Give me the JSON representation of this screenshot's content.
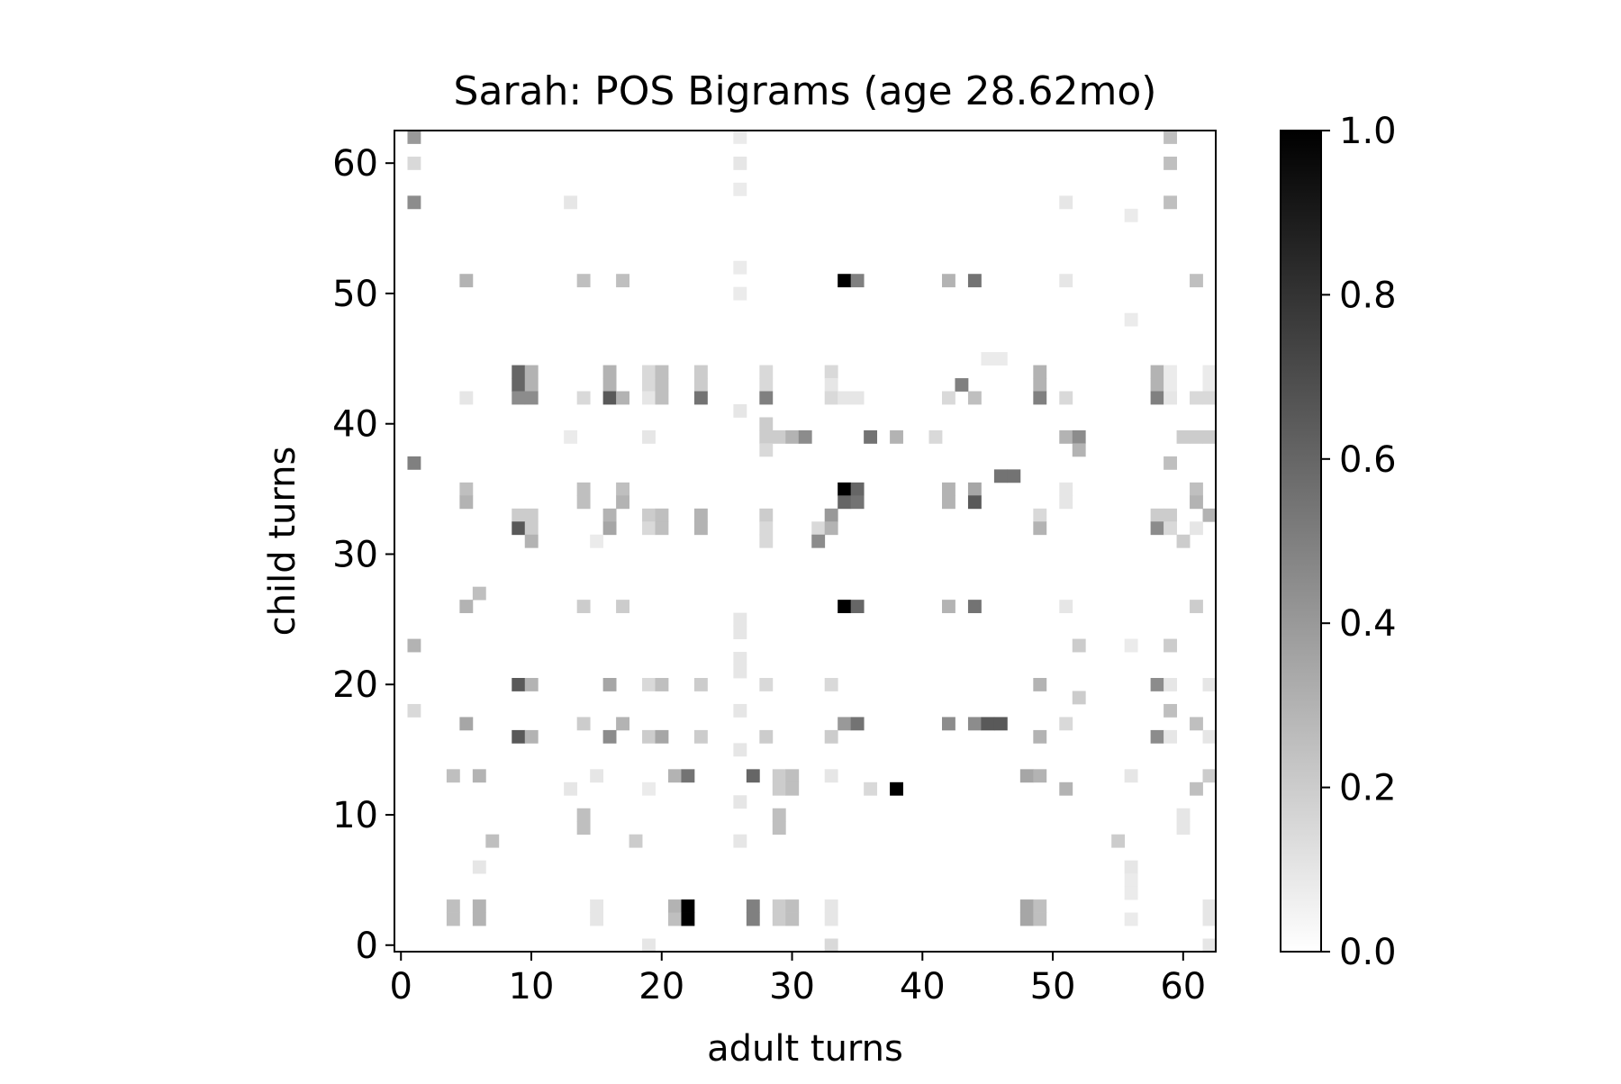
{
  "chart_data": {
    "type": "heatmap",
    "title": "Sarah: POS Bigrams (age 28.62mo)",
    "xlabel": "adult turns",
    "ylabel": "child turns",
    "xlim": [
      -0.5,
      62.5
    ],
    "ylim": [
      -0.5,
      62.5
    ],
    "x_ticks": [
      0,
      10,
      20,
      30,
      40,
      50,
      60
    ],
    "y_ticks": [
      0,
      10,
      20,
      30,
      40,
      50,
      60
    ],
    "x_tick_labels": [
      "0",
      "10",
      "20",
      "30",
      "40",
      "50",
      "60"
    ],
    "y_tick_labels": [
      "0",
      "10",
      "20",
      "30",
      "40",
      "50",
      "60"
    ],
    "colormap": "Greys",
    "color_min": "#ffffff",
    "color_max": "#000000",
    "value_range": [
      0.0,
      1.0
    ],
    "colorbar_ticks": [
      0.0,
      0.2,
      0.4,
      0.6,
      0.8,
      1.0
    ],
    "colorbar_tick_labels": [
      "0.0",
      "0.2",
      "0.4",
      "0.6",
      "0.8",
      "1.0"
    ],
    "grid": false,
    "cells": [
      [
        1,
        62,
        0.4
      ],
      [
        26,
        62,
        0.08
      ],
      [
        59,
        62,
        0.25
      ],
      [
        1,
        60,
        0.15
      ],
      [
        26,
        60,
        0.1
      ],
      [
        59,
        60,
        0.25
      ],
      [
        26,
        58,
        0.08
      ],
      [
        1,
        57,
        0.45
      ],
      [
        13,
        57,
        0.1
      ],
      [
        51,
        57,
        0.1
      ],
      [
        59,
        57,
        0.25
      ],
      [
        56,
        56,
        0.08
      ],
      [
        26,
        52,
        0.08
      ],
      [
        5,
        51,
        0.3
      ],
      [
        14,
        51,
        0.25
      ],
      [
        17,
        51,
        0.25
      ],
      [
        34,
        51,
        1.0
      ],
      [
        35,
        51,
        0.5
      ],
      [
        42,
        51,
        0.3
      ],
      [
        44,
        51,
        0.55
      ],
      [
        51,
        51,
        0.1
      ],
      [
        61,
        51,
        0.25
      ],
      [
        26,
        50,
        0.08
      ],
      [
        56,
        48,
        0.08
      ],
      [
        45,
        45,
        0.08
      ],
      [
        46,
        45,
        0.08
      ],
      [
        9,
        44,
        0.6
      ],
      [
        10,
        44,
        0.3
      ],
      [
        16,
        44,
        0.3
      ],
      [
        19,
        44,
        0.15
      ],
      [
        20,
        44,
        0.25
      ],
      [
        23,
        44,
        0.2
      ],
      [
        28,
        44,
        0.15
      ],
      [
        33,
        44,
        0.15
      ],
      [
        49,
        44,
        0.3
      ],
      [
        58,
        44,
        0.3
      ],
      [
        59,
        44,
        0.08
      ],
      [
        62,
        44,
        0.08
      ],
      [
        9,
        43,
        0.6
      ],
      [
        10,
        43,
        0.3
      ],
      [
        16,
        43,
        0.3
      ],
      [
        19,
        43,
        0.15
      ],
      [
        20,
        43,
        0.25
      ],
      [
        23,
        43,
        0.2
      ],
      [
        28,
        43,
        0.15
      ],
      [
        33,
        43,
        0.1
      ],
      [
        43,
        43,
        0.5
      ],
      [
        49,
        43,
        0.3
      ],
      [
        58,
        43,
        0.3
      ],
      [
        59,
        43,
        0.08
      ],
      [
        62,
        43,
        0.08
      ],
      [
        5,
        42,
        0.1
      ],
      [
        9,
        42,
        0.45
      ],
      [
        10,
        42,
        0.45
      ],
      [
        14,
        42,
        0.15
      ],
      [
        16,
        42,
        0.65
      ],
      [
        17,
        42,
        0.3
      ],
      [
        19,
        42,
        0.1
      ],
      [
        20,
        42,
        0.25
      ],
      [
        23,
        42,
        0.55
      ],
      [
        28,
        42,
        0.5
      ],
      [
        33,
        42,
        0.15
      ],
      [
        34,
        42,
        0.1
      ],
      [
        35,
        42,
        0.1
      ],
      [
        42,
        42,
        0.15
      ],
      [
        44,
        42,
        0.25
      ],
      [
        49,
        42,
        0.5
      ],
      [
        51,
        42,
        0.15
      ],
      [
        58,
        42,
        0.5
      ],
      [
        59,
        42,
        0.1
      ],
      [
        61,
        42,
        0.15
      ],
      [
        62,
        42,
        0.15
      ],
      [
        26,
        41,
        0.1
      ],
      [
        28,
        40,
        0.2
      ],
      [
        13,
        39,
        0.08
      ],
      [
        19,
        39,
        0.1
      ],
      [
        28,
        39,
        0.2
      ],
      [
        29,
        39,
        0.2
      ],
      [
        30,
        39,
        0.3
      ],
      [
        31,
        39,
        0.45
      ],
      [
        36,
        39,
        0.55
      ],
      [
        38,
        39,
        0.3
      ],
      [
        41,
        39,
        0.15
      ],
      [
        51,
        39,
        0.3
      ],
      [
        52,
        39,
        0.45
      ],
      [
        60,
        39,
        0.2
      ],
      [
        61,
        39,
        0.2
      ],
      [
        62,
        39,
        0.2
      ],
      [
        28,
        38,
        0.15
      ],
      [
        52,
        38,
        0.3
      ],
      [
        1,
        37,
        0.5
      ],
      [
        59,
        37,
        0.25
      ],
      [
        46,
        36,
        0.55
      ],
      [
        47,
        36,
        0.55
      ],
      [
        5,
        35,
        0.25
      ],
      [
        14,
        35,
        0.25
      ],
      [
        17,
        35,
        0.25
      ],
      [
        34,
        35,
        1.0
      ],
      [
        35,
        35,
        0.6
      ],
      [
        42,
        35,
        0.3
      ],
      [
        44,
        35,
        0.35
      ],
      [
        51,
        35,
        0.1
      ],
      [
        61,
        35,
        0.25
      ],
      [
        5,
        34,
        0.3
      ],
      [
        14,
        34,
        0.25
      ],
      [
        17,
        34,
        0.3
      ],
      [
        34,
        34,
        0.6
      ],
      [
        35,
        34,
        0.55
      ],
      [
        42,
        34,
        0.3
      ],
      [
        44,
        34,
        0.65
      ],
      [
        51,
        34,
        0.1
      ],
      [
        61,
        34,
        0.3
      ],
      [
        9,
        33,
        0.2
      ],
      [
        10,
        33,
        0.2
      ],
      [
        16,
        33,
        0.3
      ],
      [
        19,
        33,
        0.2
      ],
      [
        20,
        33,
        0.25
      ],
      [
        23,
        33,
        0.3
      ],
      [
        28,
        33,
        0.2
      ],
      [
        33,
        33,
        0.4
      ],
      [
        49,
        33,
        0.15
      ],
      [
        58,
        33,
        0.2
      ],
      [
        59,
        33,
        0.2
      ],
      [
        62,
        33,
        0.3
      ],
      [
        9,
        32,
        0.65
      ],
      [
        10,
        32,
        0.2
      ],
      [
        16,
        32,
        0.35
      ],
      [
        19,
        32,
        0.15
      ],
      [
        20,
        32,
        0.25
      ],
      [
        23,
        32,
        0.3
      ],
      [
        28,
        32,
        0.15
      ],
      [
        32,
        32,
        0.15
      ],
      [
        33,
        32,
        0.3
      ],
      [
        49,
        32,
        0.3
      ],
      [
        58,
        32,
        0.45
      ],
      [
        59,
        32,
        0.15
      ],
      [
        61,
        32,
        0.1
      ],
      [
        10,
        31,
        0.3
      ],
      [
        15,
        31,
        0.08
      ],
      [
        28,
        31,
        0.15
      ],
      [
        32,
        31,
        0.45
      ],
      [
        60,
        31,
        0.2
      ],
      [
        6,
        27,
        0.25
      ],
      [
        5,
        26,
        0.3
      ],
      [
        14,
        26,
        0.2
      ],
      [
        17,
        26,
        0.2
      ],
      [
        34,
        26,
        1.0
      ],
      [
        35,
        26,
        0.6
      ],
      [
        42,
        26,
        0.3
      ],
      [
        44,
        26,
        0.55
      ],
      [
        51,
        26,
        0.1
      ],
      [
        61,
        26,
        0.2
      ],
      [
        26,
        25,
        0.1
      ],
      [
        26,
        24,
        0.1
      ],
      [
        1,
        23,
        0.3
      ],
      [
        52,
        23,
        0.2
      ],
      [
        56,
        23,
        0.08
      ],
      [
        59,
        23,
        0.2
      ],
      [
        26,
        22,
        0.1
      ],
      [
        26,
        21,
        0.1
      ],
      [
        9,
        20,
        0.65
      ],
      [
        10,
        20,
        0.3
      ],
      [
        16,
        20,
        0.35
      ],
      [
        19,
        20,
        0.15
      ],
      [
        20,
        20,
        0.25
      ],
      [
        23,
        20,
        0.2
      ],
      [
        28,
        20,
        0.15
      ],
      [
        33,
        20,
        0.15
      ],
      [
        49,
        20,
        0.3
      ],
      [
        58,
        20,
        0.45
      ],
      [
        59,
        20,
        0.1
      ],
      [
        62,
        20,
        0.1
      ],
      [
        52,
        19,
        0.2
      ],
      [
        1,
        18,
        0.15
      ],
      [
        26,
        18,
        0.1
      ],
      [
        59,
        18,
        0.25
      ],
      [
        5,
        17,
        0.35
      ],
      [
        14,
        17,
        0.2
      ],
      [
        17,
        17,
        0.3
      ],
      [
        34,
        17,
        0.4
      ],
      [
        35,
        17,
        0.55
      ],
      [
        42,
        17,
        0.45
      ],
      [
        44,
        17,
        0.45
      ],
      [
        45,
        17,
        0.65
      ],
      [
        46,
        17,
        0.65
      ],
      [
        51,
        17,
        0.15
      ],
      [
        61,
        17,
        0.25
      ],
      [
        9,
        16,
        0.65
      ],
      [
        10,
        16,
        0.3
      ],
      [
        16,
        16,
        0.45
      ],
      [
        19,
        16,
        0.2
      ],
      [
        20,
        16,
        0.35
      ],
      [
        23,
        16,
        0.2
      ],
      [
        28,
        16,
        0.2
      ],
      [
        33,
        16,
        0.2
      ],
      [
        49,
        16,
        0.3
      ],
      [
        58,
        16,
        0.45
      ],
      [
        59,
        16,
        0.1
      ],
      [
        62,
        16,
        0.1
      ],
      [
        26,
        15,
        0.1
      ],
      [
        4,
        13,
        0.25
      ],
      [
        6,
        13,
        0.3
      ],
      [
        15,
        13,
        0.1
      ],
      [
        21,
        13,
        0.3
      ],
      [
        22,
        13,
        0.55
      ],
      [
        27,
        13,
        0.6
      ],
      [
        29,
        13,
        0.2
      ],
      [
        30,
        13,
        0.25
      ],
      [
        33,
        13,
        0.1
      ],
      [
        48,
        13,
        0.35
      ],
      [
        49,
        13,
        0.3
      ],
      [
        56,
        13,
        0.1
      ],
      [
        62,
        13,
        0.2
      ],
      [
        13,
        12,
        0.1
      ],
      [
        19,
        12,
        0.08
      ],
      [
        29,
        12,
        0.2
      ],
      [
        30,
        12,
        0.25
      ],
      [
        36,
        12,
        0.15
      ],
      [
        38,
        12,
        1.0
      ],
      [
        51,
        12,
        0.3
      ],
      [
        61,
        12,
        0.25
      ],
      [
        26,
        11,
        0.1
      ],
      [
        14,
        10,
        0.25
      ],
      [
        29,
        10,
        0.25
      ],
      [
        60,
        10,
        0.1
      ],
      [
        14,
        9,
        0.25
      ],
      [
        29,
        9,
        0.25
      ],
      [
        60,
        9,
        0.1
      ],
      [
        7,
        8,
        0.25
      ],
      [
        18,
        8,
        0.2
      ],
      [
        26,
        8,
        0.1
      ],
      [
        55,
        8,
        0.2
      ],
      [
        6,
        6,
        0.1
      ],
      [
        56,
        6,
        0.1
      ],
      [
        56,
        5,
        0.08
      ],
      [
        56,
        4,
        0.08
      ],
      [
        4,
        3,
        0.25
      ],
      [
        6,
        3,
        0.3
      ],
      [
        15,
        3,
        0.1
      ],
      [
        21,
        3,
        0.3
      ],
      [
        22,
        3,
        1.0
      ],
      [
        27,
        3,
        0.5
      ],
      [
        29,
        3,
        0.2
      ],
      [
        30,
        3,
        0.25
      ],
      [
        33,
        3,
        0.1
      ],
      [
        48,
        3,
        0.35
      ],
      [
        49,
        3,
        0.25
      ],
      [
        62,
        3,
        0.1
      ],
      [
        4,
        2,
        0.25
      ],
      [
        6,
        2,
        0.3
      ],
      [
        15,
        2,
        0.1
      ],
      [
        21,
        2,
        0.25
      ],
      [
        22,
        2,
        1.0
      ],
      [
        27,
        2,
        0.5
      ],
      [
        29,
        2,
        0.2
      ],
      [
        30,
        2,
        0.25
      ],
      [
        33,
        2,
        0.1
      ],
      [
        48,
        2,
        0.35
      ],
      [
        49,
        2,
        0.25
      ],
      [
        56,
        2,
        0.08
      ],
      [
        62,
        2,
        0.1
      ],
      [
        19,
        0,
        0.1
      ],
      [
        33,
        0,
        0.15
      ],
      [
        62,
        0,
        0.1
      ]
    ]
  }
}
